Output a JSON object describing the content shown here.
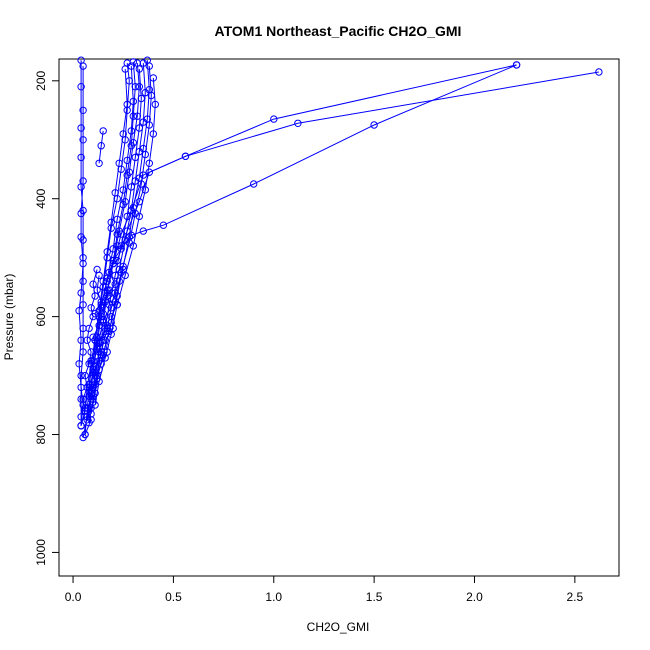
{
  "chart_data": {
    "type": "line",
    "title": "ATOM1 Northeast_Pacific CH2O_GMI",
    "xlabel": "CH2O_GMI",
    "ylabel": "Pressure (mbar)",
    "xlim": [
      -0.07,
      2.72
    ],
    "ylim": [
      1040,
      163
    ],
    "y_reversed": true,
    "x_ticks": [
      0.0,
      0.5,
      1.0,
      1.5,
      2.0,
      2.5
    ],
    "x_tick_labels": [
      "0.0",
      "0.5",
      "1.0",
      "1.5",
      "2.0",
      "2.5"
    ],
    "y_ticks": [
      200,
      400,
      600,
      800,
      1000
    ],
    "y_tick_labels": [
      "200",
      "400",
      "600",
      "800",
      "1000"
    ],
    "series_color": "#0000ff",
    "marker": "open-circle",
    "series": [
      {
        "x": [
          0.04,
          0.04,
          0.04,
          0.04,
          0.04,
          0.05,
          0.05,
          0.05,
          0.05,
          0.05,
          0.05,
          0.05,
          0.04,
          0.04,
          0.04,
          0.04
        ],
        "y": [
          165,
          210,
          280,
          330,
          380,
          420,
          470,
          500,
          540,
          580,
          620,
          660,
          700,
          740,
          770,
          785
        ]
      },
      {
        "x": [
          0.05,
          0.05,
          0.05,
          0.05,
          0.04,
          0.04,
          0.05,
          0.04,
          0.03,
          0.04,
          0.03,
          0.04,
          0.05,
          0.04
        ],
        "y": [
          175,
          250,
          300,
          370,
          425,
          465,
          510,
          560,
          590,
          640,
          680,
          720,
          750,
          785
        ]
      },
      {
        "x": [
          0.27,
          0.28,
          0.27,
          0.26,
          0.24,
          0.22,
          0.19,
          0.17,
          0.15,
          0.13,
          0.11,
          0.09,
          0.08,
          0.07,
          0.06
        ],
        "y": [
          170,
          200,
          250,
          300,
          350,
          400,
          450,
          500,
          550,
          600,
          640,
          680,
          720,
          760,
          800
        ]
      },
      {
        "x": [
          0.3,
          0.31,
          0.3,
          0.29,
          0.27,
          0.25,
          0.22,
          0.2,
          0.17,
          0.15,
          0.12,
          0.1,
          0.09,
          0.07,
          0.05
        ],
        "y": [
          168,
          210,
          260,
          310,
          360,
          410,
          460,
          510,
          560,
          610,
          650,
          690,
          730,
          770,
          805
        ]
      },
      {
        "x": [
          0.35,
          0.36,
          0.35,
          0.33,
          0.31,
          0.29,
          0.26,
          0.23,
          0.2,
          0.17,
          0.14,
          0.12,
          0.1,
          0.08
        ],
        "y": [
          170,
          220,
          270,
          320,
          370,
          420,
          470,
          520,
          570,
          620,
          660,
          700,
          740,
          780
        ]
      },
      {
        "x": [
          0.38,
          0.39,
          0.38,
          0.36,
          0.34,
          0.31,
          0.28,
          0.24,
          0.21,
          0.18,
          0.15,
          0.12,
          0.1
        ],
        "y": [
          175,
          225,
          275,
          325,
          375,
          425,
          475,
          525,
          575,
          625,
          665,
          705,
          745
        ]
      },
      {
        "x": [
          0.4,
          0.41,
          0.4,
          0.38,
          0.36,
          0.33,
          0.3,
          0.26,
          0.22,
          0.19,
          0.16,
          0.13,
          0.11
        ],
        "y": [
          195,
          240,
          290,
          340,
          385,
          430,
          480,
          530,
          580,
          630,
          670,
          710,
          750
        ]
      },
      {
        "x": [
          0.33,
          0.34,
          0.33,
          0.31,
          0.29,
          0.27,
          0.24,
          0.21,
          0.18,
          0.16,
          0.13,
          0.11,
          0.09,
          0.07
        ],
        "y": [
          180,
          230,
          280,
          330,
          380,
          430,
          480,
          530,
          580,
          620,
          660,
          700,
          740,
          770
        ]
      },
      {
        "x": [
          0.26,
          0.27,
          0.25,
          0.23,
          0.21,
          0.19,
          0.17,
          0.15,
          0.13,
          0.11,
          0.09,
          0.07,
          0.06
        ],
        "y": [
          180,
          240,
          290,
          340,
          390,
          440,
          490,
          540,
          590,
          640,
          680,
          720,
          760
        ]
      },
      {
        "x": [
          0.37,
          0.38,
          0.37,
          0.35,
          0.33,
          0.3,
          0.28,
          0.25,
          0.22,
          0.19,
          0.16,
          0.13,
          0.11,
          0.09
        ],
        "y": [
          165,
          215,
          265,
          315,
          365,
          415,
          465,
          515,
          565,
          610,
          650,
          690,
          730,
          765
        ]
      },
      {
        "x": [
          0.32,
          0.33,
          0.32,
          0.3,
          0.28,
          0.26,
          0.23,
          0.2,
          0.17,
          0.14,
          0.12,
          0.1,
          0.08
        ],
        "y": [
          170,
          210,
          260,
          305,
          355,
          405,
          455,
          505,
          555,
          600,
          645,
          690,
          735
        ]
      },
      {
        "x": [
          0.29,
          0.3,
          0.29,
          0.27,
          0.25,
          0.22,
          0.2,
          0.17,
          0.14,
          0.12,
          0.1,
          0.08,
          0.06
        ],
        "y": [
          175,
          235,
          285,
          335,
          385,
          435,
          485,
          535,
          585,
          635,
          675,
          715,
          755
        ]
      },
      {
        "x": [
          0.2,
          0.24,
          0.29,
          0.35,
          0.56,
          1.12,
          2.62
        ],
        "y": [
          510,
          460,
          420,
          360,
          328,
          272,
          185
        ]
      },
      {
        "x": [
          0.22,
          0.27,
          0.33,
          0.38,
          0.56,
          1.0,
          2.21
        ],
        "y": [
          505,
          455,
          405,
          355,
          328,
          265,
          173
        ]
      },
      {
        "x": [
          0.14,
          0.17,
          0.2,
          0.24,
          0.29,
          0.35,
          0.45,
          0.9,
          1.5,
          2.21
        ],
        "y": [
          580,
          540,
          505,
          485,
          462,
          455,
          445,
          375,
          275,
          173
        ]
      },
      {
        "x": [
          0.15,
          0.14,
          0.13
        ],
        "y": [
          285,
          310,
          340
        ]
      },
      {
        "x": [
          0.12,
          0.1,
          0.11,
          0.09,
          0.1,
          0.08,
          0.07,
          0.09,
          0.08,
          0.06,
          0.07,
          0.05,
          0.06,
          0.04
        ],
        "y": [
          520,
          545,
          565,
          585,
          600,
          620,
          640,
          660,
          680,
          700,
          720,
          740,
          760,
          785
        ]
      },
      {
        "x": [
          0.13,
          0.12,
          0.14,
          0.11,
          0.13,
          0.1,
          0.12,
          0.09,
          0.11,
          0.08,
          0.1,
          0.07,
          0.09,
          0.06
        ],
        "y": [
          530,
          555,
          575,
          595,
          615,
          635,
          655,
          675,
          695,
          715,
          735,
          755,
          775,
          800
        ]
      },
      {
        "x": [
          0.22,
          0.2,
          0.18,
          0.21,
          0.17,
          0.19,
          0.15,
          0.16,
          0.13,
          0.14,
          0.11,
          0.12,
          0.09
        ],
        "y": [
          480,
          505,
          525,
          545,
          565,
          585,
          605,
          625,
          645,
          665,
          685,
          705,
          725
        ]
      },
      {
        "x": [
          0.18,
          0.16,
          0.15,
          0.17,
          0.14,
          0.12,
          0.13,
          0.1,
          0.11,
          0.08,
          0.09,
          0.07
        ],
        "y": [
          555,
          575,
          595,
          615,
          635,
          655,
          675,
          695,
          715,
          735,
          755,
          775
        ]
      },
      {
        "x": [
          0.25,
          0.23,
          0.21,
          0.22,
          0.19,
          0.2,
          0.16,
          0.17,
          0.14,
          0.12,
          0.1
        ],
        "y": [
          520,
          540,
          560,
          580,
          600,
          620,
          640,
          660,
          680,
          700,
          720
        ]
      }
    ]
  }
}
